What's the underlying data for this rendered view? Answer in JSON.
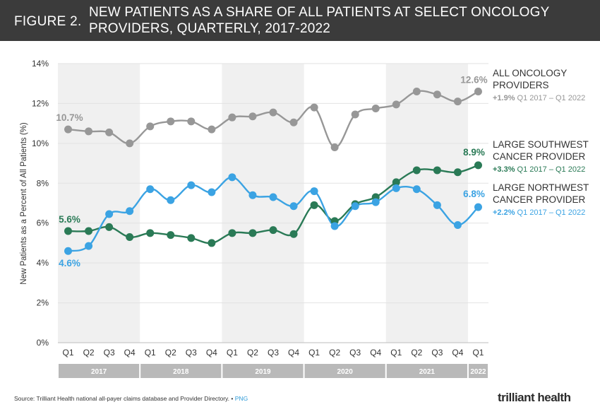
{
  "header": {
    "figure_label": "FIGURE 2.",
    "title": "NEW PATIENTS AS A SHARE OF ALL PATIENTS AT SELECT ONCOLOGY PROVIDERS, QUARTERLY, 2017-2022"
  },
  "footer": {
    "source": "Source: Trilliant Health national all-payer claims database and Provider Directory. •",
    "png_link": "PNG",
    "logo": "trilliant health"
  },
  "chart_data": {
    "type": "line",
    "title": "NEW PATIENTS AS A SHARE OF ALL PATIENTS AT SELECT ONCOLOGY PROVIDERS, QUARTERLY, 2017-2022",
    "ylabel": "New Patients as a Percent of All Patients (%)",
    "xlabel": "",
    "ylim": [
      0,
      14
    ],
    "yticks": [
      "0%",
      "2%",
      "4%",
      "6%",
      "8%",
      "10%",
      "12%",
      "14%"
    ],
    "quarters": [
      "Q1",
      "Q2",
      "Q3",
      "Q4",
      "Q1",
      "Q2",
      "Q3",
      "Q4",
      "Q1",
      "Q2",
      "Q3",
      "Q4",
      "Q1",
      "Q2",
      "Q3",
      "Q4",
      "Q1",
      "Q2",
      "Q3",
      "Q4",
      "Q1"
    ],
    "years": [
      {
        "label": "2017",
        "count": 4
      },
      {
        "label": "2018",
        "count": 4
      },
      {
        "label": "2019",
        "count": 4
      },
      {
        "label": "2020",
        "count": 4
      },
      {
        "label": "2021",
        "count": 4
      },
      {
        "label": "2022",
        "count": 1
      }
    ],
    "series": [
      {
        "name": "ALL ONCOLOGY PROVIDERS",
        "color": "#979797",
        "change": "+1.9%",
        "period": "Q1 2017 – Q1 2022",
        "start_label": "10.7%",
        "end_label": "12.6%",
        "values": [
          10.7,
          10.6,
          10.55,
          10.0,
          10.85,
          11.1,
          11.1,
          10.7,
          11.3,
          11.35,
          11.55,
          11.05,
          11.8,
          9.8,
          11.45,
          11.75,
          11.95,
          12.6,
          12.45,
          12.1,
          12.6
        ]
      },
      {
        "name": "LARGE SOUTHWEST CANCER PROVIDER",
        "color": "#2a7a56",
        "change": "+3.3%",
        "period": "Q1 2017 – Q1 2022",
        "start_label": "5.6%",
        "end_label": "8.9%",
        "values": [
          5.6,
          5.6,
          5.8,
          5.3,
          5.5,
          5.4,
          5.25,
          5.0,
          5.5,
          5.5,
          5.65,
          5.45,
          6.9,
          6.1,
          6.95,
          7.3,
          8.05,
          8.65,
          8.65,
          8.55,
          8.9
        ]
      },
      {
        "name": "LARGE NORTHWEST CANCER PROVIDER",
        "color": "#3ba3e3",
        "change": "+2.2%",
        "period": "Q1 2017 – Q1 2022",
        "start_label": "4.6%",
        "end_label": "6.8%",
        "values": [
          4.6,
          4.85,
          6.45,
          6.6,
          7.7,
          7.15,
          7.9,
          7.55,
          8.3,
          7.4,
          7.3,
          6.85,
          7.6,
          5.85,
          6.85,
          7.05,
          7.75,
          7.7,
          6.9,
          5.9,
          6.8
        ]
      }
    ]
  }
}
